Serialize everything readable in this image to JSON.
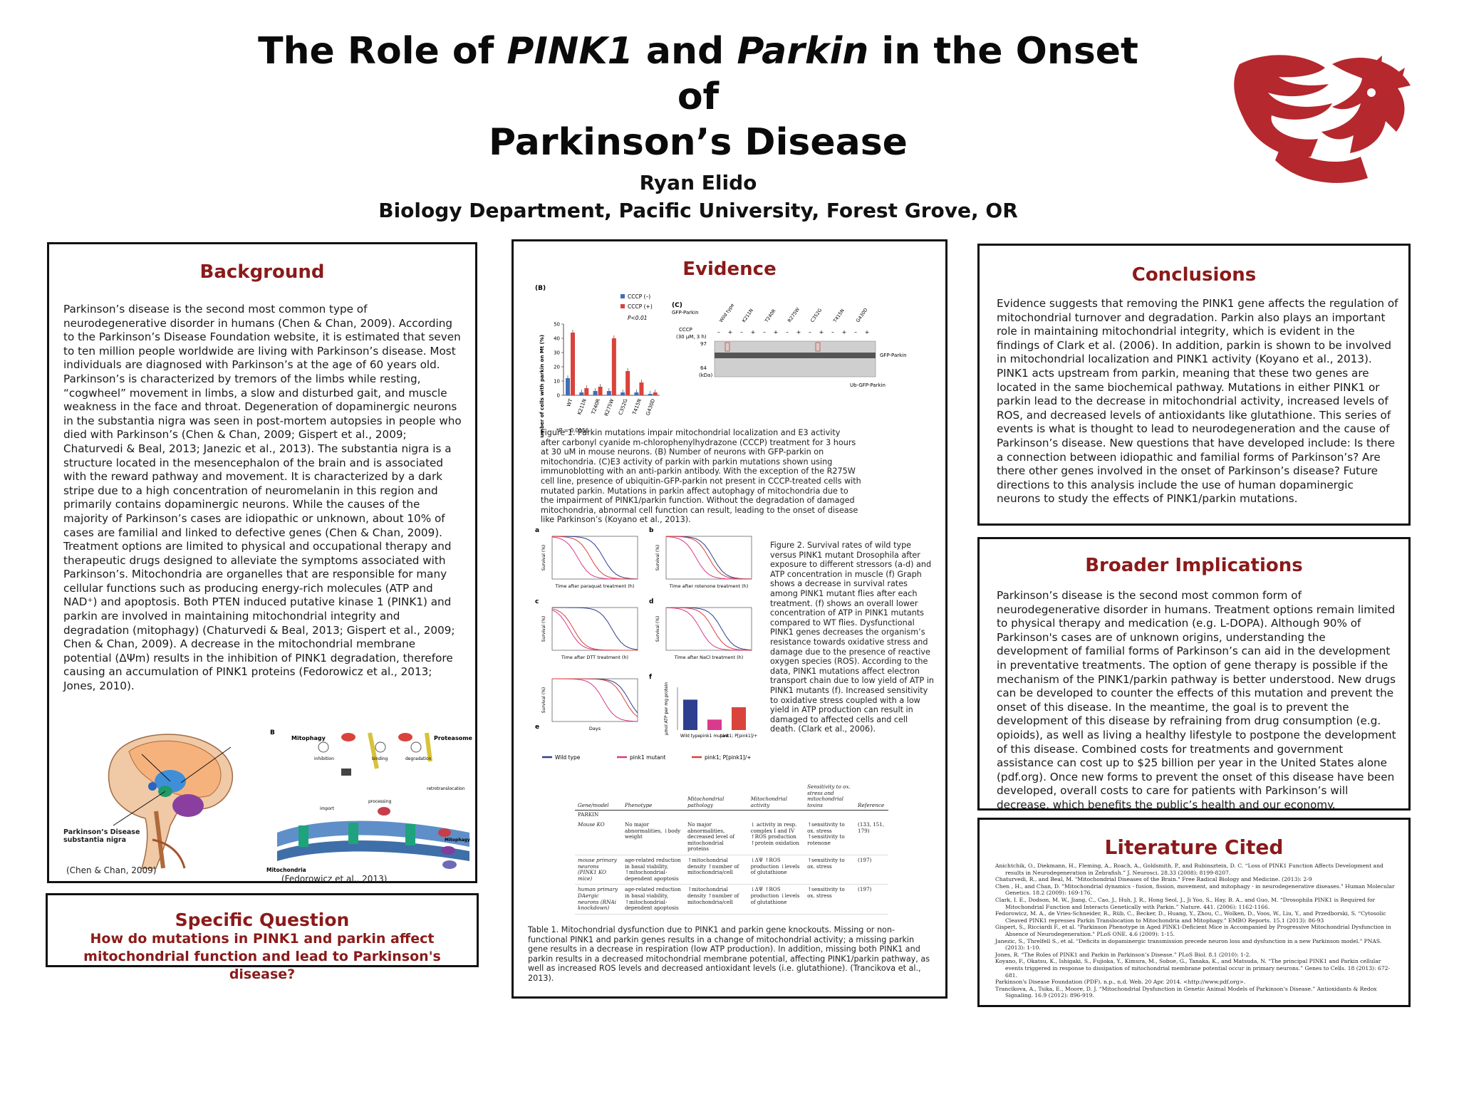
{
  "poster": {
    "title_line1_a": "The Role of ",
    "title_gene1": "PINK1",
    "title_line1_b": " and ",
    "title_gene2": "Parkin",
    "title_line1_c": " in the Onset of",
    "title_line2": "Parkinson’s Disease",
    "author": "Ryan Elido",
    "department": "Biology Department, Pacific University, Forest Grove, OR"
  },
  "background": {
    "heading": "Background",
    "text": "Parkinson’s disease is the second most common type of neurodegenerative disorder in humans (Chen & Chan, 2009). According to the Parkinson’s Disease Foundation website, it is estimated that seven to ten million people worldwide are living with Parkinson’s disease. Most individuals are diagnosed with Parkinson’s at the age of 60 years old. Parkinson’s is characterized by tremors of the limbs while resting, “cogwheel” movement in limbs, a slow and disturbed gait, and muscle weakness in the face and throat. Degeneration of dopaminergic neurons in the substantia nigra was seen in post-mortem autopsies in people who died with Parkinson’s (Chen & Chan, 2009; Gispert et al., 2009; Chaturvedi & Beal, 2013; Janezic et al., 2013). The substantia nigra is a structure located in the mesencephalon of the brain and is associated with the reward pathway and movement. It is characterized by a dark stripe due to a high concentration of neuromelanin in this region and primarily contains dopaminergic neurons. While the causes of the majority of Parkinson’s cases are idiopathic or unknown, about 10% of cases are familial and linked to defective genes (Chen & Chan, 2009). Treatment options are limited to physical and occupational therapy and therapeutic drugs designed to alleviate the symptoms associated with Parkinson’s. Mitochondria are organelles that are responsible for many cellular functions such as producing energy-rich molecules (ATP and NAD⁺) and apoptosis. Both PTEN induced putative kinase 1 (PINK1) and parkin are involved in maintaining mitochondrial integrity and degradation (mitophagy) (Chaturvedi & Beal, 2013; Gispert et al., 2009; Chen & Chan, 2009). A decrease in the mitochondrial membrane potential (ΔΨm) results in the inhibition of PINK1 degradation, therefore causing an accumulation of PINK1 proteins (Fedorowicz et al., 2013; Jones, 2010).",
    "brain_label": "Parkinson’s Disease substantia nigra",
    "brain_cite": "(Chen & Chan, 2009)",
    "mito_cite": "(Fedorowicz et al., 2013)",
    "mito_labels": {
      "panel": "B",
      "mitophagy": "Mitophagy",
      "proteasome": "Proteasome",
      "inhibition": "inhibition",
      "binding": "binding",
      "degradation": "degradation",
      "retrotranslocation": "retrotranslocation",
      "processing": "processing",
      "import": "import",
      "mitochondria": "Mitochondria"
    }
  },
  "specific_question": {
    "heading": "Specific Question",
    "question": "How do mutations in PINK1 and parkin affect mitochondrial function and lead to Parkinson's disease?"
  },
  "evidence": {
    "heading": "Evidence",
    "figure1_caption": "Figure 1. Parkin mutations impair mitochondrial localization and E3 activity after carbonyl cyanide m-chlorophenylhydrazone (CCCP) treatment for 3 hours at 30 uM in mouse neurons. (B) Number of neurons with GFP-parkin on mitochondria. (C)E3 activity of parkin with parkin mutations shown using immunoblotting with an anti-parkin antibody. With the exception of the R275W cell line, presence of ubiquitin-GFP-parkin not present in CCCP-treated cells with mutated parkin. Mutations in parkin affect autophagy of mitochondria due to the impairment of PINK1/parkin function. Without the degradation of damaged mitochondria, abnormal cell function can result, leading to the onset of disease like Parkinson’s (Koyano et al., 2013).",
    "figure2_caption": "Figure 2. Survival rates of wild type versus PINK1 mutant Drosophila after exposure to different stressors (a-d) and ATP concentration in muscle (f) Graph shows a decrease in survival rates among PINK1 mutant flies after each treatment. (f) shows an overall lower concentration of ATP in PINK1 mutants compared to WT flies. Dysfunctional PINK1 genes decreases the organism’s resistance towards oxidative stress and damage due to the presence of reactive oxygen species (ROS). According to the data, PINK1 mutations affect electron transport chain due to low yield of ATP in PINK1 mutants (f). Increased sensitivity to oxidative stress coupled with a low yield in ATP production can result in damaged to affected cells and cell death. (Clark et al., 2006).",
    "table1_caption": "Table 1. Mitochondrial dysfunction due to PINK1 and parkin gene knockouts. Missing or non-functional PINK1 and parkin genes results in a change of mitochondrial activity; a missing parkin gene results in a decrease in respiration (low ATP production). In addition, missing both PINK1 and parkin results in a decreased mitochondrial membrane potential, affecting PINK1/parkin pathway, as well as increased ROS levels and decreased antioxidant levels (i.e. glutathione). (Trancikova et al., 2013).",
    "fig1b": {
      "panel_label": "(B)",
      "legend_minus": "CCCP (–)",
      "legend_plus": "CCCP (+)",
      "pvalue": "P<0.01",
      "pvalue2": "*P = 0.0156",
      "ylabel": "Number of cells with parkin on Mt (%)",
      "yticks": [
        "0",
        "10",
        "20",
        "30",
        "40",
        "50"
      ],
      "categories": [
        "WT",
        "K211N",
        "T240R",
        "R275W",
        "C352G",
        "T415N",
        "G430D"
      ]
    },
    "fig1c": {
      "panel_label": "(C)",
      "row1": "GFP-Parkin",
      "row2": "CCCP",
      "row3": "(30 μM, 3 h)",
      "lanes": [
        "Wild type",
        "K211N",
        "T240R",
        "R275W",
        "C352G",
        "T415N",
        "G430D"
      ],
      "mw1": "97",
      "mw2": "64",
      "kda": "(kDa)",
      "band1": "GFP-Parkin",
      "band2": "Ub-GFP-Parkin",
      "signs": [
        "–",
        "+",
        "–",
        "+",
        "–",
        "+",
        "–",
        "+",
        "–",
        "+",
        "–",
        "+",
        "–",
        "+"
      ]
    },
    "fig2": {
      "a": "a",
      "b": "b",
      "c": "c",
      "d": "d",
      "e": "e",
      "f": "f",
      "xa": "Time after paraquat treatment (h)",
      "xb": "Time after rotenone treatment (h)",
      "xc": "Time after DTT treatment (h)",
      "xd": "Time after NaCl treatment (h)",
      "xe": "Days",
      "ylabel": "Survival (%)",
      "fylabel": "μmol ATP per mg protein",
      "fcats": [
        "Wild type",
        "pink1 mutant",
        "pink1; P[pink1]/+"
      ],
      "legend": [
        "Wild type",
        "pink1 mutant",
        "pink1; P[pink1]/+"
      ]
    },
    "table1": {
      "headers": [
        "Gene/model",
        "Phenotype",
        "Mitochondrial pathology",
        "Mitochondrial activity",
        "Sensitivity to ox. stress and mitochondrial toxins",
        "Reference"
      ],
      "group": "PARKIN",
      "rows": [
        [
          "Mouse KO",
          "No major abnormalities, ↓body weight",
          "No major abnormalities, decreased level of mitochondrial proteins",
          "↓ activity in resp. complex I and IV ↑ROS production ↑protein oxidation",
          "↑sensitivity to ox. stress ↑sensitivity to rotenone",
          "(133, 151, 179)"
        ],
        [
          "mouse primary neurons (PINK1 KO mice)",
          "age-related reduction in basal viability, ↑mitochondrial-dependent apoptosis",
          "↑mitochondrial density ↑number of mitochondria/cell",
          "↓ΔΨ ↑ROS production ↓levels of glutathione",
          "↑sensitivity to ox. stress",
          "(197)"
        ],
        [
          "human primary DAergic neurons (RNAi knockdown)",
          "age-related reduction in basal viability, ↑mitochondrial-dependent apoptosis",
          "↑mitochondrial density ↑number of mitochondria/cell",
          "↓ΔΨ ↑ROS production ↓levels of glutathione",
          "↑sensitivity to ox. stress",
          "(197)"
        ]
      ]
    }
  },
  "conclusions": {
    "heading": "Conclusions",
    "text": "Evidence suggests that removing the PINK1 gene affects the regulation of mitochondrial turnover and degradation. Parkin also plays an important role in maintaining mitochondrial integrity, which is evident in the findings of Clark et al. (2006). In addition, parkin is shown to be involved in mitochondrial localization and PINK1 activity (Koyano et al., 2013). PINK1 acts upstream from parkin, meaning that these two genes are located in the same biochemical pathway. Mutations in either PINK1 or parkin lead to the decrease in mitochondrial activity, increased levels of ROS, and decreased levels of antioxidants like glutathione. This series of events is what is thought to lead to neurodegeneration and the cause of Parkinson’s disease. New questions that have developed include: Is there a connection between idiopathic and familial forms of Parkinson’s? Are there other genes involved in the onset of Parkinson’s disease? Future directions to this analysis include the use of human dopaminergic neurons to study the effects of PINK1/parkin mutations."
  },
  "broader": {
    "heading": "Broader Implications",
    "text": "Parkinson’s disease is the second most common form of neurodegenerative disorder in humans. Treatment options remain limited to physical therapy and medication (e.g. L-DOPA). Although 90% of Parkinson's cases are of unknown origins, understanding the development of familial forms of Parkinson’s can aid in the development in preventative treatments. The option of gene therapy is possible if the mechanism of the PINK1/parkin pathway is better understood. New drugs can be developed to counter the effects of this mutation and prevent the onset of this disease. In the meantime, the goal is to prevent the development of this disease by refraining from drug consumption (e.g. opioids), as well as living a healthy lifestyle to postpone the development of this disease. Combined costs for treatments and government assistance can cost up to $25 billion per year in the United States alone (pdf.org). Once new forms to prevent the onset of this disease have been developed, overall costs to care for patients with Parkinson’s will decrease, which benefits the public’s health and our economy."
  },
  "literature": {
    "heading": "Literature Cited",
    "refs": [
      "Anichtchik, O., Diekmann, H., Fleming, A., Roach, A., Goldsmith, P., and Rubinsztein, D. C. “Loss of PINK1 Function Affects Development and results in Neurodegeneration in Zebrafish.” J. Neurosci. 28.33 (2008): 8199-8207.",
      "Chaturvedi, R., and Beal, M. \"Mitochondrial Diseases of the Brain.\" Free Radical Biology and Medicine. (2013): 2-9",
      "Chen , H., and Chan, D. \"Mitochondrial dynamics - fusion, fission, movement, and mitophagy - in neurodegenerative diseases.\" Human Molecular Genetics. 18.2 (2009): 169-176.",
      "Clark, I. E., Dodson, M. W., Jiang, C., Cao, J., Huh, J. R., Hong Seol, J., Ji Yoo, S., Hay, B. A., and Guo, M. “Drosophila PINK1 is Required for Mitochondrial Function and Interacts Genetically with Parkin.” Nature. 441. (2006): 1162-1166.",
      "Fedorowicz, M. A., de Vries-Schneider, R., Rüb, C., Becker, D., Huang, Y., Zhou, C., Wolken, D., Voos, W., Liu, Y., and Przedborski, S. “Cytosolic Cleaved PINK1 represses Parkin Translocation to Mitochondria and Mitophagy.” EMBO Reports. 15.1 (2013): 86-93",
      "Gispert, S., Ricciardi F., et al. \"Parkinson Phenotype in Aged PINK1-Deficient Mice is Accompanied by Progressive Mitochondrial Dysfunction in Absence of Neurodegeneration.\" PLoS ONE. 4.6 (2009): 1-15.",
      "Janezic, S., Threlfell S., et al. \"Deficits in dopaminergic transmission precede neuron loss and dysfunction in a new Parkinson model.\" PNAS. (2013): 1-10.",
      "Jones, R. “The Roles of PINK1 and Parkin in Parkinson’s Disease.” PLoS Biol. 8.1 (2010): 1-2.",
      "Koyano, F., Okatsu, K., Ishigaki, S., Fujioka, Y., Kimura, M., Sobue, G., Tanaka, K., and Matsuda, N. “The principal PINK1 and Parkin cellular events triggered in response to dissipation of mitochondrial membrane potential occur in primary neurons.” Genes to Cells. 18 (2013): 672-681.",
      "Parkinson's Disease Foundation (PDF). n.p., n.d. Web. 20 Apr. 2014. <http://www.pdf.org>.",
      "Trancikova, A., Tsika, E., Moore, D. J. “Mitochondrial Dysfunction in Genetic Animal Models of Parkinson’s Disease.” Antioxidants & Redox Signaling. 16.9 (2012): 896-919."
    ]
  },
  "chart_data": [
    {
      "type": "bar",
      "title": "",
      "ylabel": "Number of cells with parkin on Mt (%)",
      "categories": [
        "WT",
        "K211N",
        "T240R",
        "R275W",
        "C352G",
        "T415N",
        "G430D"
      ],
      "ylim": [
        0,
        50
      ],
      "series": [
        {
          "name": "CCCP (–)",
          "values": [
            12,
            2,
            3,
            3,
            2,
            2,
            1
          ]
        },
        {
          "name": "CCCP (+)",
          "values": [
            44,
            5,
            6,
            40,
            17,
            9,
            2
          ]
        }
      ]
    },
    {
      "type": "bar",
      "ylabel": "μmol ATP per mg protein",
      "categories": [
        "Wild type",
        "pink1 mutant",
        "pink1; P[pink1]/+"
      ],
      "ylim": [
        0,
        0.45
      ],
      "series": [
        {
          "values": [
            0.32,
            0.11,
            0.24
          ]
        }
      ]
    }
  ],
  "colors": {
    "heading": "#8b1a1a",
    "blue": "#3e6fb6",
    "red": "#d9433b",
    "magenta": "#d93a8c",
    "navy": "#2f3f8f"
  }
}
